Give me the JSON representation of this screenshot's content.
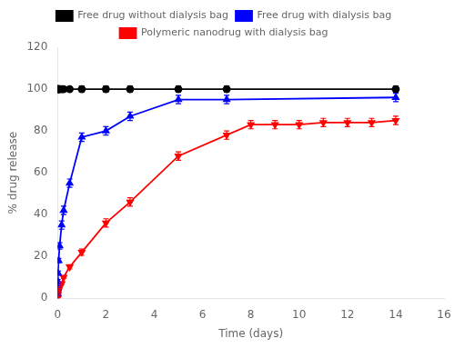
{
  "chart_data": {
    "type": "line",
    "xlabel": "Time (days)",
    "ylabel": "% drug release",
    "xlim": [
      0,
      16
    ],
    "ylim": [
      0,
      120
    ],
    "xticks": [
      0,
      2,
      4,
      6,
      8,
      10,
      12,
      14,
      16
    ],
    "yticks": [
      0,
      20,
      40,
      60,
      80,
      100,
      120
    ],
    "grid": false,
    "legend": "top",
    "series": [
      {
        "name": "Free drug without dialysis bag",
        "color": "#000000",
        "marker": "circle",
        "x": [
          0.003,
          0.007,
          0.014,
          0.021,
          0.042,
          0.083,
          0.167,
          0.25,
          0.5,
          1,
          2,
          3,
          5,
          7,
          14
        ],
        "values": [
          100,
          100,
          100,
          100,
          100,
          100,
          100,
          100,
          100,
          100,
          100,
          100,
          100,
          100,
          100
        ],
        "yerr": [
          1,
          1,
          1,
          1,
          1,
          1,
          1,
          1,
          1,
          1.5,
          1.5,
          1.5,
          1.5,
          1.5,
          1.5
        ]
      },
      {
        "name": "Free drug with dialysis bag",
        "color": "#0000ff",
        "marker": "triangle",
        "x": [
          0.003,
          0.007,
          0.014,
          0.021,
          0.042,
          0.083,
          0.167,
          0.25,
          0.5,
          1,
          2,
          3,
          5,
          7,
          14
        ],
        "values": [
          2,
          5,
          8,
          12,
          18,
          25,
          35,
          42,
          55,
          77,
          80,
          87,
          95,
          95,
          96
        ],
        "yerr": [
          1,
          1,
          1,
          1,
          1,
          1.5,
          2,
          2,
          2,
          2,
          2,
          2,
          2,
          2,
          2
        ]
      },
      {
        "name": "Polymeric nanodrug with dialysis bag",
        "color": "#ff0000",
        "marker": "triangle_down",
        "x": [
          0.003,
          0.007,
          0.014,
          0.021,
          0.042,
          0.083,
          0.167,
          0.25,
          0.5,
          1,
          2,
          3,
          5,
          7,
          8,
          9,
          10,
          11,
          12,
          13,
          14
        ],
        "values": [
          0,
          1,
          2,
          3,
          4,
          5,
          7,
          10,
          15,
          22,
          36,
          46,
          68,
          78,
          83,
          83,
          83,
          84,
          84,
          84,
          85
        ],
        "yerr": [
          0.5,
          0.5,
          0.5,
          0.5,
          0.5,
          0.5,
          0.5,
          0.5,
          1,
          1.5,
          2,
          2,
          2,
          2,
          2,
          2,
          2,
          2,
          2,
          2,
          2
        ]
      }
    ]
  }
}
